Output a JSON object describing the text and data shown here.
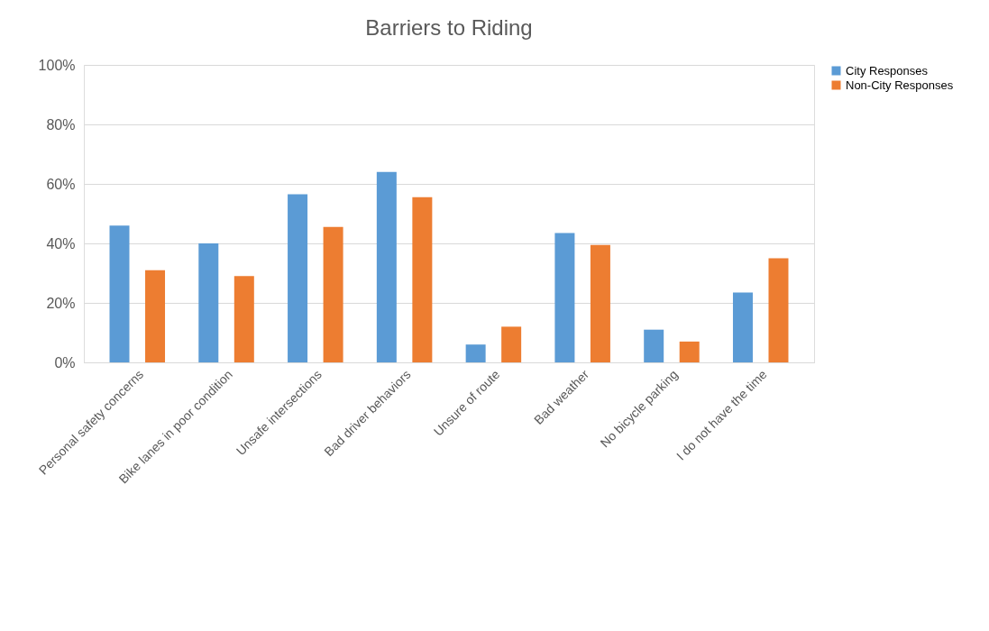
{
  "chart_data": {
    "type": "bar",
    "title": "Barriers to Riding",
    "categories": [
      "Personal safety concerns",
      "Bike lanes in poor condition",
      "Unsafe intersections",
      "Bad driver behaviors",
      "Unsure of route",
      "Bad weather",
      "No bicycle parking",
      "I do not have the time"
    ],
    "series": [
      {
        "name": "City Responses",
        "color": "#5b9bd5",
        "values": [
          46,
          40,
          56.5,
          64,
          6,
          43.5,
          11,
          23.5
        ]
      },
      {
        "name": "Non-City Responses",
        "color": "#ed7d31",
        "values": [
          31,
          29,
          45.5,
          55.5,
          12,
          39.5,
          7,
          35
        ]
      }
    ],
    "ylim": [
      0,
      100
    ],
    "yticks": [
      {
        "value": 0,
        "label": "0%"
      },
      {
        "value": 20,
        "label": "20%"
      },
      {
        "value": 40,
        "label": "40%"
      },
      {
        "value": 60,
        "label": "60%"
      },
      {
        "value": 80,
        "label": "80%"
      },
      {
        "value": 100,
        "label": "100%"
      }
    ],
    "grid": "y",
    "legend": "right"
  }
}
